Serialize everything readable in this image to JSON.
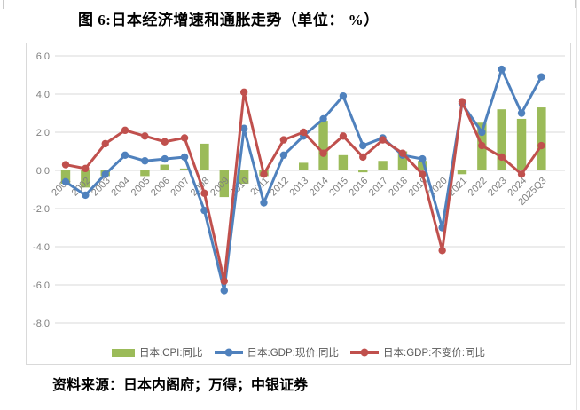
{
  "figure": {
    "title": "图 6:日本经济增速和通胀走势（单位： %）",
    "source_note": "资料来源：日本内阁府；万得；中银证券"
  },
  "chart_data": {
    "type": "bar",
    "subtype": "combo-bar-line",
    "title": "图 6:日本经济增速和通胀走势（单位： %）",
    "xlabel": "",
    "ylabel": "",
    "categories": [
      "2001",
      "2002",
      "2003",
      "2004",
      "2005",
      "2006",
      "2007",
      "2008",
      "2009",
      "2010",
      "2011",
      "2012",
      "2013",
      "2014",
      "2015",
      "2016",
      "2017",
      "2018",
      "2019",
      "2020",
      "2021",
      "2022",
      "2023",
      "2024",
      "2025Q3"
    ],
    "series": [
      {
        "name": "日本:CPI:同比",
        "type": "bar",
        "color": "#9BBB59",
        "values": [
          -0.7,
          -0.9,
          -0.3,
          0,
          -0.3,
          0.3,
          0.1,
          1.4,
          -1.4,
          -0.7,
          -0.3,
          0,
          0.4,
          2.6,
          0.8,
          -0.1,
          0.5,
          1.0,
          0.5,
          0,
          -0.2,
          2.5,
          3.2,
          2.7,
          3.3
        ]
      },
      {
        "name": "日本:GDP:现价:同比",
        "type": "line",
        "color": "#4F81BD",
        "values": [
          -0.6,
          -1.3,
          -0.2,
          0.8,
          0.5,
          0.6,
          0.7,
          -2.1,
          -6.3,
          2.2,
          -1.7,
          0.8,
          1.8,
          2.7,
          3.9,
          1.3,
          1.7,
          0.8,
          0.6,
          -3.0,
          3.5,
          2.0,
          5.3,
          3.0,
          4.9
        ]
      },
      {
        "name": "日本:GDP:不变价:同比",
        "type": "line",
        "color": "#C0504D",
        "values": [
          0.3,
          0.1,
          1.4,
          2.1,
          1.8,
          1.5,
          1.7,
          -1.2,
          -5.8,
          4.1,
          -0.2,
          1.6,
          2.0,
          0.9,
          1.8,
          0.7,
          1.6,
          0.9,
          -0.2,
          -4.2,
          3.6,
          1.3,
          0.7,
          -0.2,
          1.3
        ]
      }
    ],
    "ylim": [
      -8,
      6
    ],
    "yticks": [
      6,
      4,
      2,
      0,
      -2,
      -4,
      -6,
      -8
    ],
    "ytick_labels": [
      "6.0",
      "4.0",
      "2.0",
      "0.0",
      "-2.0",
      "-4.0",
      "-6.0",
      "-8.0"
    ],
    "grid": true,
    "legend_position": "bottom",
    "axis_text_color": "#808080",
    "legend_text_color": "#595959",
    "gridline_color": "#D9D9D9",
    "frame_color": "#D9D9D9"
  }
}
